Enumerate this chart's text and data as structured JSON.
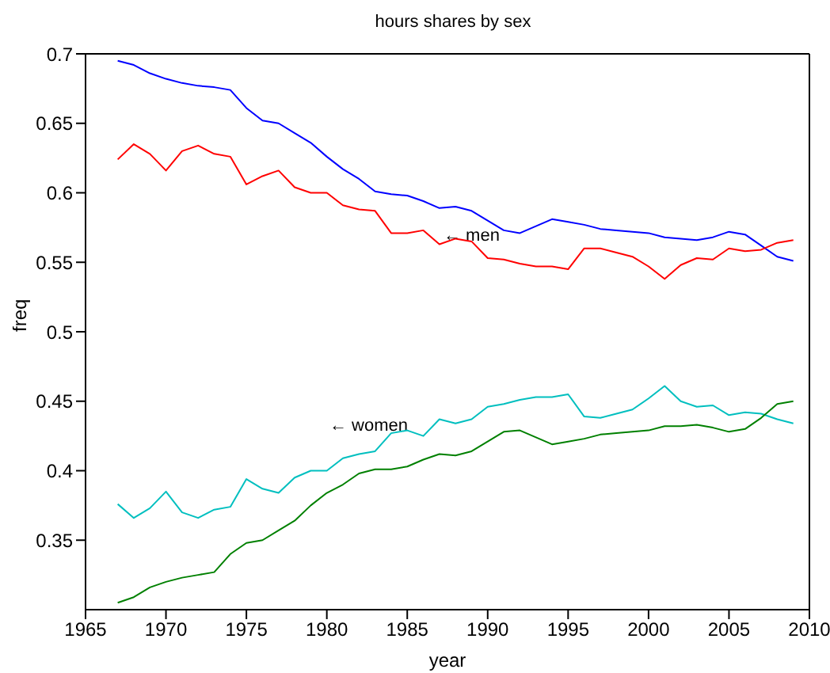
{
  "chart_data": {
    "type": "line",
    "title": "hours shares by sex",
    "xlabel": "year",
    "ylabel": "freq",
    "x": [
      1967,
      1968,
      1969,
      1970,
      1971,
      1972,
      1973,
      1974,
      1975,
      1976,
      1977,
      1978,
      1979,
      1980,
      1981,
      1982,
      1983,
      1984,
      1985,
      1986,
      1987,
      1988,
      1989,
      1990,
      1991,
      1992,
      1993,
      1994,
      1995,
      1996,
      1997,
      1998,
      1999,
      2000,
      2001,
      2002,
      2003,
      2004,
      2005,
      2006,
      2007,
      2008,
      2009
    ],
    "series": [
      {
        "color": "#0000ff",
        "values": [
          0.695,
          0.692,
          0.686,
          0.682,
          0.679,
          0.677,
          0.676,
          0.674,
          0.661,
          0.652,
          0.65,
          0.643,
          0.636,
          0.626,
          0.617,
          0.61,
          0.601,
          0.599,
          0.598,
          0.594,
          0.589,
          0.59,
          0.587,
          0.58,
          0.573,
          0.571,
          0.576,
          0.581,
          0.579,
          0.577,
          0.574,
          0.573,
          0.572,
          0.571,
          0.568,
          0.567,
          0.566,
          0.568,
          0.572,
          0.57,
          0.562,
          0.554,
          0.551
        ]
      },
      {
        "color": "#ff0000",
        "values": [
          0.624,
          0.635,
          0.628,
          0.616,
          0.63,
          0.634,
          0.628,
          0.626,
          0.606,
          0.612,
          0.616,
          0.604,
          0.6,
          0.6,
          0.591,
          0.588,
          0.587,
          0.571,
          0.571,
          0.573,
          0.563,
          0.567,
          0.565,
          0.553,
          0.552,
          0.549,
          0.547,
          0.547,
          0.545,
          0.56,
          0.56,
          0.557,
          0.554,
          0.547,
          0.538,
          0.548,
          0.553,
          0.552,
          0.56,
          0.558,
          0.559,
          0.564,
          0.566
        ]
      },
      {
        "color": "#00bfbf",
        "values": [
          0.376,
          0.366,
          0.373,
          0.385,
          0.37,
          0.366,
          0.372,
          0.374,
          0.394,
          0.387,
          0.384,
          0.395,
          0.4,
          0.4,
          0.409,
          0.412,
          0.414,
          0.427,
          0.429,
          0.425,
          0.437,
          0.434,
          0.437,
          0.446,
          0.448,
          0.451,
          0.453,
          0.453,
          0.455,
          0.439,
          0.438,
          0.441,
          0.444,
          0.452,
          0.461,
          0.45,
          0.446,
          0.447,
          0.44,
          0.442,
          0.441,
          0.437,
          0.434
        ]
      },
      {
        "color": "#008000",
        "values": [
          0.305,
          0.309,
          0.316,
          0.32,
          0.323,
          0.325,
          0.327,
          0.34,
          0.348,
          0.35,
          0.357,
          0.364,
          0.375,
          0.384,
          0.39,
          0.398,
          0.401,
          0.401,
          0.403,
          0.408,
          0.412,
          0.411,
          0.414,
          0.421,
          0.428,
          0.429,
          0.424,
          0.419,
          0.421,
          0.423,
          0.426,
          0.427,
          0.428,
          0.429,
          0.432,
          0.432,
          0.433,
          0.431,
          0.428,
          0.43,
          0.438,
          0.448,
          0.45
        ]
      }
    ],
    "annotations": [
      "← men",
      "← women"
    ],
    "xlim": [
      1965,
      2010
    ],
    "xticks": [
      1965,
      1970,
      1975,
      1980,
      1985,
      1990,
      1995,
      2000,
      2005,
      2010
    ],
    "ylim": [
      0.3,
      0.7
    ],
    "yticks": [
      0.35,
      0.4,
      0.45,
      0.5,
      0.55,
      0.6,
      0.65,
      0.7
    ],
    "grid": false,
    "marker": "none",
    "line_style": "solid"
  }
}
